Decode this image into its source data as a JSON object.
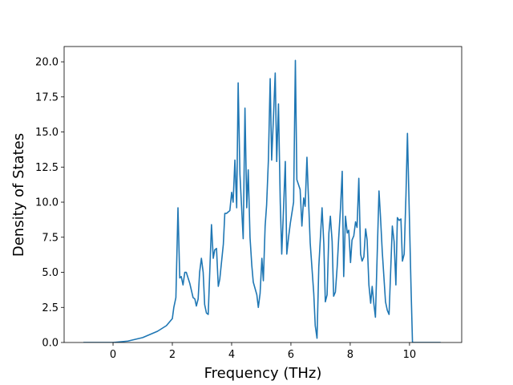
{
  "chart_data": {
    "type": "line",
    "xlabel": "Frequency (THz)",
    "ylabel": "Density of States",
    "x": [
      -1,
      -0.5,
      0,
      0.5,
      1,
      1.5,
      1.8,
      2.0,
      2.05,
      2.12,
      2.19,
      2.25,
      2.3,
      2.36,
      2.42,
      2.47,
      2.59,
      2.7,
      2.76,
      2.81,
      2.87,
      2.92,
      2.98,
      3.04,
      3.09,
      3.15,
      3.21,
      3.32,
      3.38,
      3.43,
      3.49,
      3.55,
      3.6,
      3.72,
      3.77,
      3.83,
      3.94,
      4.0,
      4.05,
      4.11,
      4.17,
      4.22,
      4.28,
      4.39,
      4.45,
      4.51,
      4.56,
      4.62,
      4.68,
      4.73,
      4.85,
      4.9,
      4.96,
      5.02,
      5.07,
      5.13,
      5.18,
      5.24,
      5.3,
      5.35,
      5.41,
      5.47,
      5.52,
      5.58,
      5.64,
      5.69,
      5.75,
      5.81,
      5.86,
      5.92,
      5.98,
      6.09,
      6.15,
      6.2,
      6.31,
      6.37,
      6.43,
      6.48,
      6.54,
      6.6,
      6.65,
      6.77,
      6.82,
      6.88,
      6.94,
      7.05,
      7.11,
      7.16,
      7.22,
      7.28,
      7.33,
      7.39,
      7.44,
      7.5,
      7.56,
      7.61,
      7.67,
      7.73,
      7.78,
      7.84,
      7.9,
      7.95,
      8.01,
      8.06,
      8.12,
      8.18,
      8.23,
      8.29,
      8.35,
      8.4,
      8.46,
      8.52,
      8.57,
      8.63,
      8.69,
      8.74,
      8.8,
      8.85,
      8.97,
      9.02,
      9.08,
      9.19,
      9.25,
      9.31,
      9.42,
      9.48,
      9.54,
      9.59,
      9.65,
      9.71,
      9.76,
      9.82,
      9.88,
      9.93,
      10.05,
      10.1,
      10.5,
      11.05
    ],
    "series": [
      {
        "color": "#1f77b4",
        "values": [
          0,
          0,
          0,
          0.1,
          0.35,
          0.8,
          1.2,
          1.7,
          2.5,
          3.2,
          9.6,
          4.6,
          4.7,
          4.1,
          5.0,
          5.0,
          4.2,
          3.2,
          3.1,
          2.6,
          3.1,
          5.0,
          6.0,
          5.0,
          2.7,
          2.1,
          2.0,
          8.4,
          6.0,
          6.6,
          6.7,
          4.0,
          4.5,
          7.0,
          9.2,
          9.2,
          9.4,
          10.7,
          10.0,
          13.0,
          9.6,
          18.5,
          12.0,
          7.4,
          16.7,
          9.6,
          12.3,
          7.5,
          5.5,
          4.3,
          3.4,
          2.5,
          3.5,
          6.0,
          4.4,
          8.3,
          9.8,
          13.0,
          18.8,
          13.0,
          16.0,
          19.2,
          12.9,
          17.0,
          10.0,
          6.3,
          9.5,
          12.9,
          6.3,
          7.5,
          8.5,
          10.0,
          20.1,
          11.6,
          10.9,
          8.3,
          10.3,
          9.7,
          13.2,
          9.8,
          7.1,
          3.5,
          1.2,
          0.3,
          5.4,
          9.6,
          7.0,
          2.9,
          3.4,
          7.8,
          9.0,
          7.2,
          3.3,
          3.6,
          5.4,
          7.4,
          9.5,
          12.2,
          4.7,
          9.0,
          7.8,
          8.0,
          5.7,
          7.3,
          7.6,
          8.6,
          8.2,
          11.7,
          6.3,
          5.8,
          6.1,
          8.1,
          7.3,
          4.1,
          2.8,
          4.0,
          2.7,
          1.8,
          10.8,
          9.0,
          6.5,
          2.9,
          2.3,
          2.0,
          8.3,
          7.2,
          4.1,
          8.9,
          8.7,
          8.8,
          5.8,
          6.3,
          10.5,
          14.9,
          4.0,
          0,
          0,
          0
        ]
      }
    ],
    "xlim": [
      -1.65,
      11.76
    ],
    "ylim": [
      0,
      21.09
    ],
    "xticks": [
      0,
      2,
      4,
      6,
      8,
      10
    ],
    "yticks": [
      {
        "value": 0,
        "label": "0.0"
      },
      {
        "value": 2.5,
        "label": "2.5"
      },
      {
        "value": 5,
        "label": "5.0"
      },
      {
        "value": 7.5,
        "label": "7.5"
      },
      {
        "value": 10,
        "label": "10.0"
      },
      {
        "value": 12.5,
        "label": "12.5"
      },
      {
        "value": 15,
        "label": "15.0"
      },
      {
        "value": 17.5,
        "label": "17.5"
      },
      {
        "value": 20,
        "label": "20.0"
      }
    ]
  }
}
